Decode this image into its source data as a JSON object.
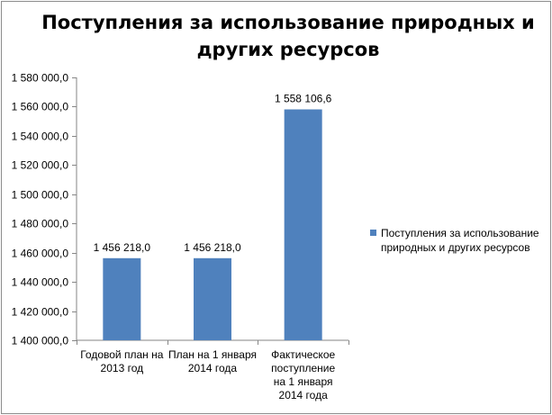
{
  "chart_data": {
    "type": "bar",
    "title_lines": [
      "Поступления за использование природных и",
      "других ресурсов"
    ],
    "categories": [
      [
        "Годовой  план на",
        "2013  год"
      ],
      [
        "План на 1 января",
        "2014 года"
      ],
      [
        "Фактическое",
        "поступление",
        "на  1 января",
        "2014 года"
      ]
    ],
    "series": [
      {
        "name": "Поступления за использование природных и других ресурсов",
        "values": [
          1456218.0,
          1456218.0,
          1558106.6
        ],
        "data_labels": [
          "1 456 218,0",
          "1 456 218,0",
          "1 558 106,6"
        ],
        "color": "#4f81bd"
      }
    ],
    "ylim": [
      1400000,
      1580000
    ],
    "y_ticks": [
      1400000,
      1420000,
      1440000,
      1460000,
      1480000,
      1500000,
      1520000,
      1540000,
      1560000,
      1580000
    ],
    "y_tick_labels": [
      "1 400 000,0",
      "1 420 000,0",
      "1 440 000,0",
      "1 460 000,0",
      "1 480 000,0",
      "1 500 000,0",
      "1 520 000,0",
      "1 540 000,0",
      "1 560 000,0",
      "1 580 000,0"
    ],
    "grid": false,
    "legend_position": "right"
  }
}
